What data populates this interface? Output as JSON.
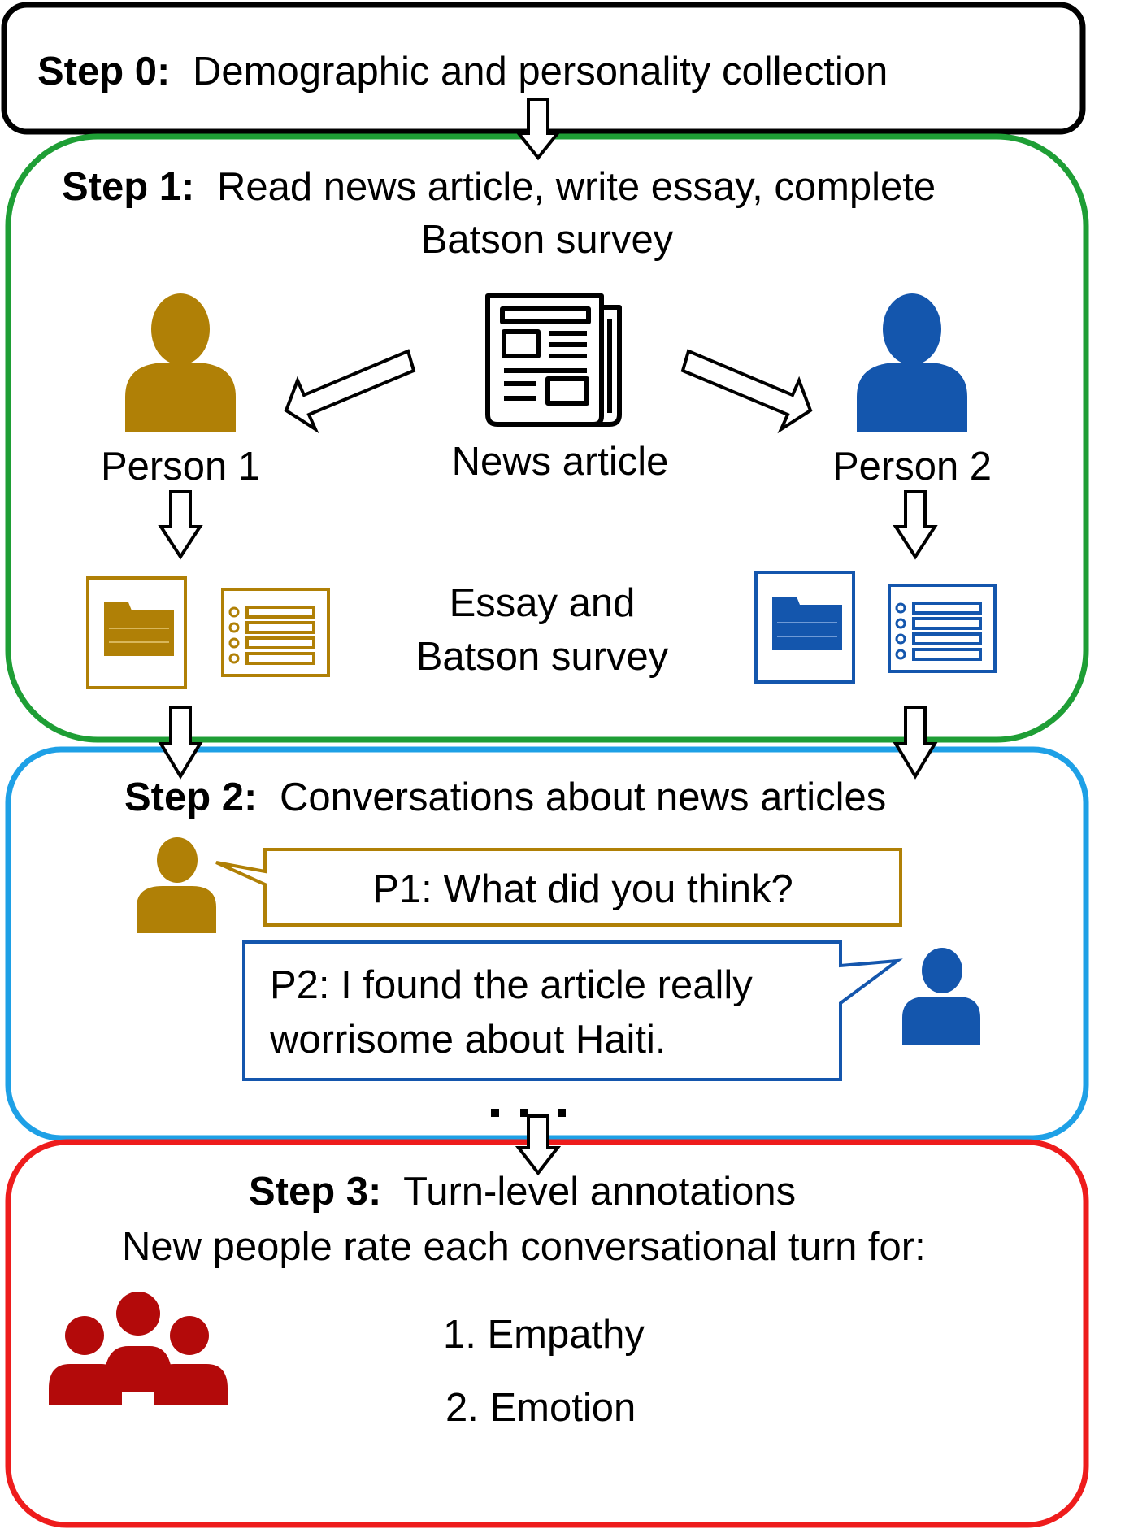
{
  "colors": {
    "black": "#000000",
    "green": "#1e9e35",
    "light_blue": "#1ea0e6",
    "red": "#ee1c1c",
    "gold": "#b08006",
    "blue": "#1456ad",
    "dark_red": "#b30a0a"
  },
  "step0": {
    "label": "Step 0:",
    "text": "Demographic and personality collection"
  },
  "step1": {
    "label": "Step 1:",
    "text_line1": "Read news article, write essay, complete",
    "text_line2": "Batson survey",
    "person1": "Person 1",
    "person2": "Person 2",
    "news_article": "News article",
    "essay_line1": "Essay and",
    "essay_line2": "Batson survey"
  },
  "step2": {
    "label": "Step 2:",
    "text": "Conversations about news articles",
    "p1_message": "P1: What did you think?",
    "p2_message_line1": "P2: I found the article really",
    "p2_message_line2": "worrisome about Haiti."
  },
  "step3": {
    "label": "Step 3:",
    "text": "Turn-level annotations",
    "subtitle": "New people rate each conversational turn for:",
    "items": [
      "1. Empathy",
      "2. Emotion"
    ]
  },
  "icons": {
    "person1": "person-icon",
    "person2": "person-icon",
    "news": "newspaper-icon",
    "essay": "document-icon",
    "survey": "checklist-icon",
    "annotators": "group-icon"
  }
}
